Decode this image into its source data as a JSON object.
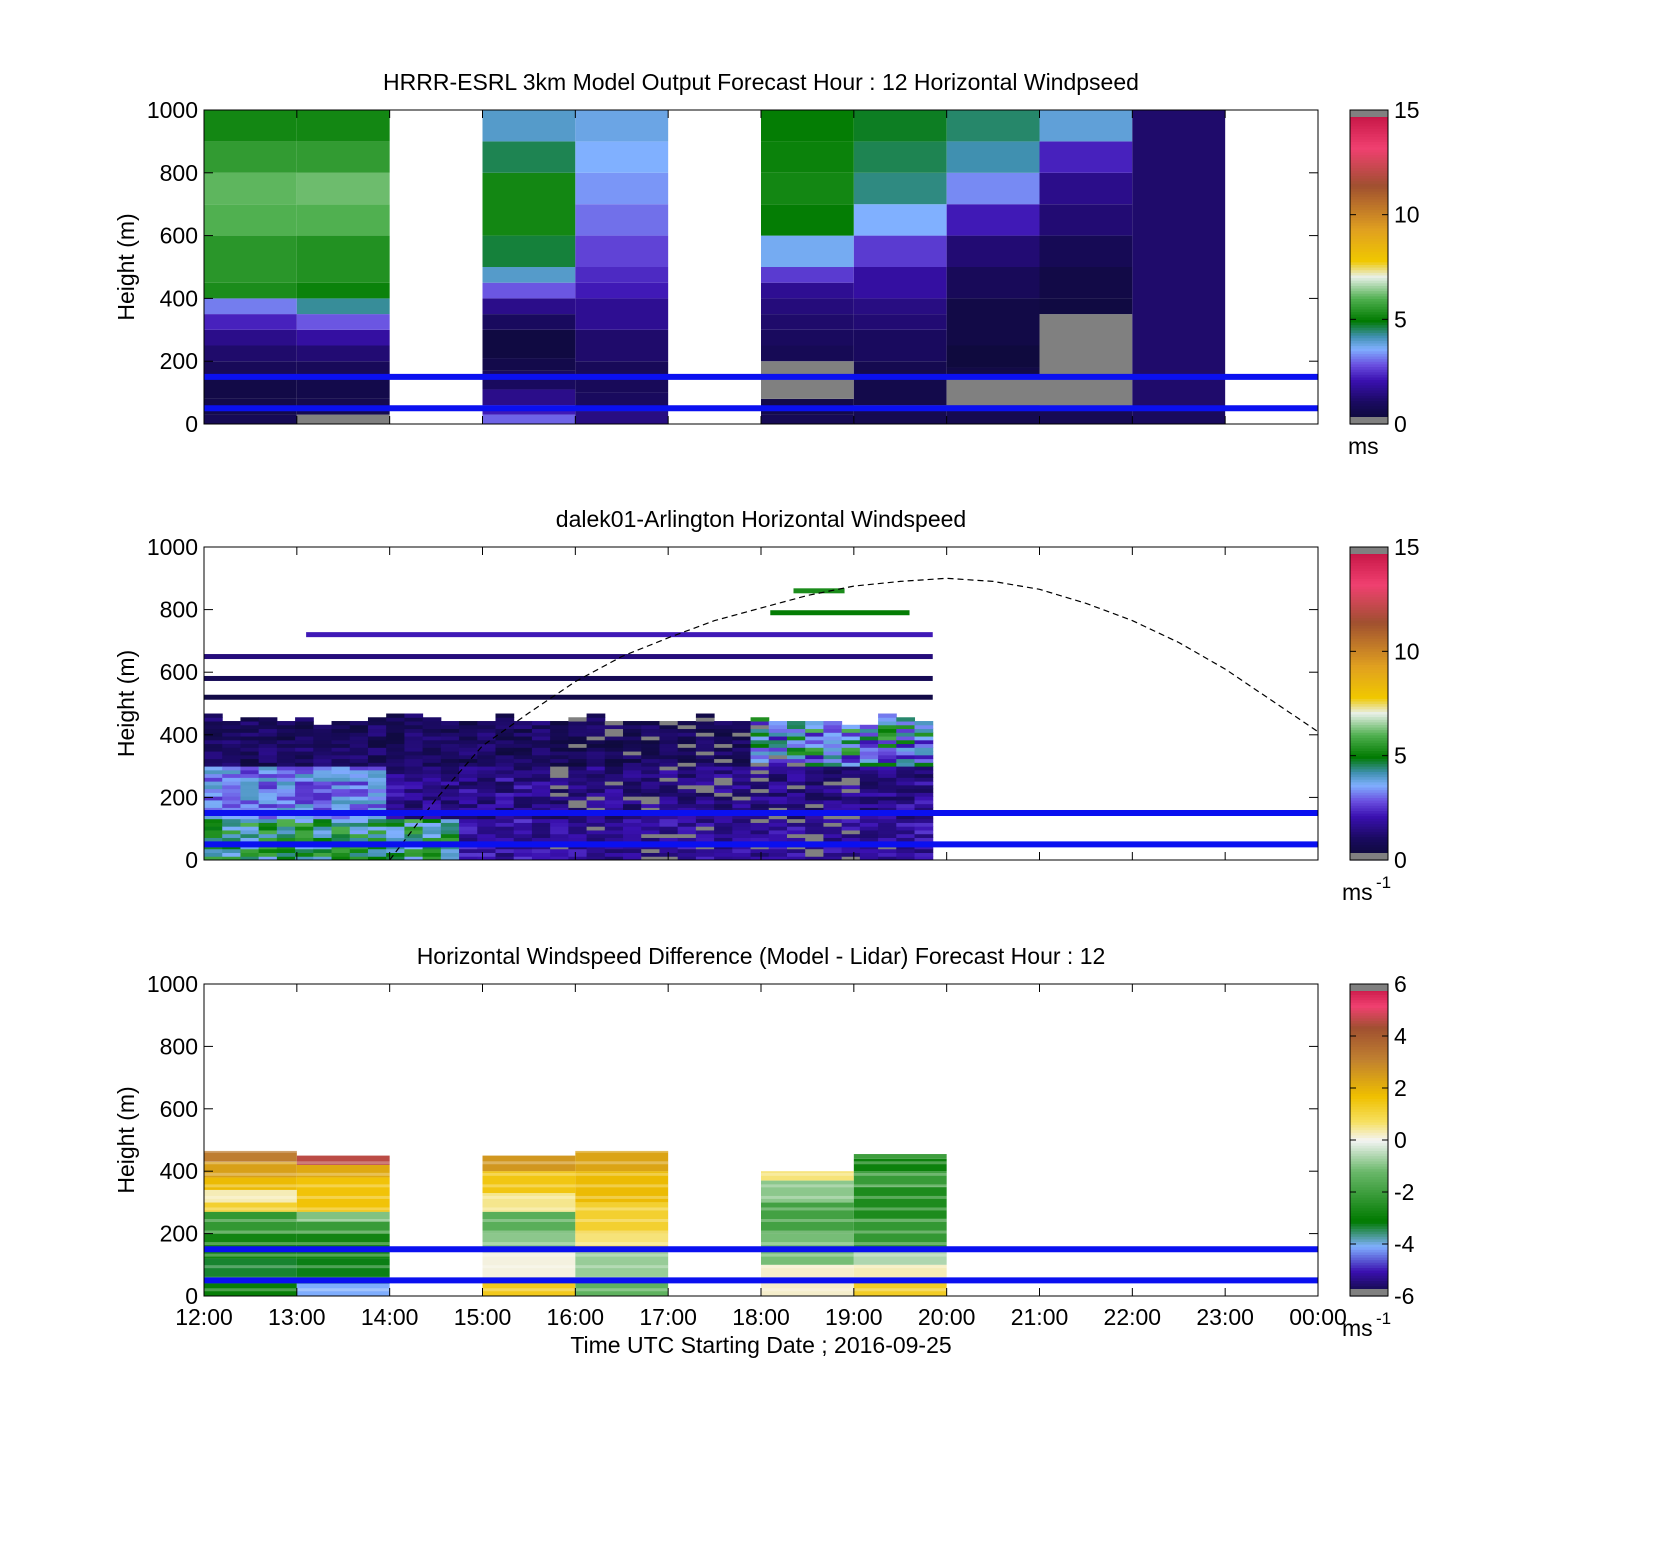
{
  "chart_data": [
    {
      "type": "heatmap",
      "title": "HRRR-ESRL 3km Model Output   Forecast Hour : 12 Horizontal Windpseed",
      "ylabel": "Height (m)",
      "xlabel": "",
      "ylim": [
        0,
        1000
      ],
      "yticks": [
        "0",
        "200",
        "400",
        "600",
        "800",
        "1000"
      ],
      "xlim_hours": [
        12,
        24
      ],
      "colorbar": {
        "min": 0,
        "max": 15,
        "ticks": [
          "0",
          "5",
          "10",
          "15"
        ],
        "unit": "ms",
        "unit_sup": "",
        "scale": "speed"
      },
      "reference_lines_m": [
        50,
        150
      ],
      "columns": [
        {
          "start_hour": 12,
          "end_hour": 13,
          "cells": [
            [
              0,
              30,
              0.8
            ],
            [
              30,
              80,
              0.6
            ],
            [
              80,
              150,
              0.5
            ],
            [
              150,
              200,
              0.9
            ],
            [
              200,
              250,
              1.2
            ],
            [
              250,
              300,
              1.6
            ],
            [
              300,
              350,
              2.3
            ],
            [
              350,
              400,
              3.2
            ],
            [
              400,
              450,
              5.3
            ],
            [
              450,
              600,
              5.5
            ],
            [
              600,
              700,
              6.0
            ],
            [
              700,
              800,
              6.1
            ],
            [
              800,
              900,
              5.6
            ],
            [
              900,
              1000,
              5.2
            ]
          ]
        },
        {
          "start_hour": 13,
          "end_hour": 14,
          "cells": [
            [
              0,
              30,
              16
            ],
            [
              30,
              80,
              0.7
            ],
            [
              80,
              150,
              0.6
            ],
            [
              150,
              200,
              0.9
            ],
            [
              200,
              250,
              1.3
            ],
            [
              250,
              300,
              1.9
            ],
            [
              300,
              350,
              2.9
            ],
            [
              350,
              400,
              4.3
            ],
            [
              400,
              450,
              5.1
            ],
            [
              450,
              600,
              5.4
            ],
            [
              600,
              700,
              6.0
            ],
            [
              700,
              800,
              6.2
            ],
            [
              800,
              900,
              5.6
            ],
            [
              900,
              1000,
              5.2
            ]
          ]
        },
        {
          "start_hour": 15,
          "end_hour": 16,
          "cells": [
            [
              0,
              30,
              3.0
            ],
            [
              30,
              60,
              2.2
            ],
            [
              60,
              110,
              1.6
            ],
            [
              110,
              170,
              1.0
            ],
            [
              170,
              210,
              0.6
            ],
            [
              210,
              300,
              0.4
            ],
            [
              300,
              350,
              1.0
            ],
            [
              350,
              400,
              1.6
            ],
            [
              400,
              450,
              2.9
            ],
            [
              450,
              500,
              4.0
            ],
            [
              500,
              600,
              4.7
            ],
            [
              600,
              800,
              5.2
            ],
            [
              800,
              900,
              4.6
            ],
            [
              900,
              1000,
              4.0
            ]
          ]
        },
        {
          "start_hour": 16,
          "end_hour": 17,
          "cells": [
            [
              0,
              40,
              1.5
            ],
            [
              40,
              100,
              1.0
            ],
            [
              100,
              200,
              0.9
            ],
            [
              200,
              300,
              1.2
            ],
            [
              300,
              400,
              1.7
            ],
            [
              400,
              450,
              2.2
            ],
            [
              450,
              500,
              2.4
            ],
            [
              500,
              600,
              2.7
            ],
            [
              600,
              700,
              3.1
            ],
            [
              700,
              800,
              3.4
            ],
            [
              800,
              900,
              3.6
            ],
            [
              900,
              1000,
              3.8
            ]
          ]
        },
        {
          "start_hour": 18,
          "end_hour": 19,
          "cells": [
            [
              0,
              30,
              0.8
            ],
            [
              30,
              80,
              0.6
            ],
            [
              80,
              200,
              16
            ],
            [
              200,
              250,
              0.8
            ],
            [
              250,
              300,
              1.0
            ],
            [
              300,
              350,
              1.2
            ],
            [
              350,
              400,
              1.4
            ],
            [
              400,
              450,
              1.7
            ],
            [
              450,
              500,
              2.6
            ],
            [
              500,
              600,
              3.7
            ],
            [
              600,
              700,
              5.0
            ],
            [
              700,
              800,
              5.2
            ],
            [
              800,
              900,
              5.1
            ],
            [
              900,
              1000,
              5.0
            ]
          ]
        },
        {
          "start_hour": 19,
          "end_hour": 20,
          "cells": [
            [
              0,
              60,
              0.7
            ],
            [
              60,
              150,
              0.6
            ],
            [
              150,
              200,
              0.7
            ],
            [
              200,
              300,
              1.0
            ],
            [
              300,
              350,
              1.3
            ],
            [
              350,
              400,
              1.5
            ],
            [
              400,
              500,
              1.9
            ],
            [
              500,
              600,
              2.6
            ],
            [
              600,
              700,
              3.6
            ],
            [
              700,
              800,
              4.4
            ],
            [
              800,
              900,
              4.6
            ],
            [
              900,
              1000,
              4.8
            ]
          ]
        },
        {
          "start_hour": 20,
          "end_hour": 21,
          "cells": [
            [
              0,
              60,
              0.7
            ],
            [
              60,
              150,
              16
            ],
            [
              150,
              180,
              0.5
            ],
            [
              180,
              250,
              0.3
            ],
            [
              250,
              400,
              0.5
            ],
            [
              400,
              500,
              0.9
            ],
            [
              500,
              600,
              1.3
            ],
            [
              600,
              700,
              2.2
            ],
            [
              700,
              800,
              3.3
            ],
            [
              800,
              900,
              4.2
            ],
            [
              900,
              1000,
              4.5
            ]
          ]
        },
        {
          "start_hour": 21,
          "end_hour": 22,
          "cells": [
            [
              0,
              50,
              0.8
            ],
            [
              50,
              350,
              16
            ],
            [
              350,
              400,
              0.4
            ],
            [
              400,
              500,
              0.5
            ],
            [
              500,
              600,
              0.8
            ],
            [
              600,
              700,
              1.3
            ],
            [
              700,
              800,
              1.6
            ],
            [
              800,
              900,
              2.3
            ],
            [
              900,
              1000,
              3.9
            ]
          ]
        },
        {
          "start_hour": 22,
          "end_hour": 23,
          "cells": [
            [
              0,
              50,
              1.0
            ],
            [
              50,
              1000,
              1.2
            ]
          ]
        }
      ]
    },
    {
      "type": "heatmap",
      "title": "dalek01-Arlington  Horizontal Windspeed",
      "ylabel": "Height (m)",
      "xlabel": "",
      "ylim": [
        0,
        1000
      ],
      "yticks": [
        "0",
        "200",
        "400",
        "600",
        "800",
        "1000"
      ],
      "xlim_hours": [
        12,
        24
      ],
      "colorbar": {
        "min": 0,
        "max": 15,
        "ticks": [
          "0",
          "5",
          "10",
          "15"
        ],
        "unit": "ms",
        "unit_sup": "-1",
        "scale": "speed"
      },
      "reference_lines_m": [
        50,
        150
      ],
      "data_extent": {
        "start_hour": 12,
        "end_hour": 19.85,
        "top_m": 460
      },
      "sparse_bands": [
        {
          "height_m": 520,
          "start_hour": 12,
          "end_hour": 19.85,
          "speed": 0.5
        },
        {
          "height_m": 580,
          "start_hour": 12,
          "end_hour": 19.85,
          "speed": 0.8
        },
        {
          "height_m": 650,
          "start_hour": 12,
          "end_hour": 19.85,
          "speed": 1.4
        },
        {
          "height_m": 720,
          "start_hour": 13.1,
          "end_hour": 19.85,
          "speed": 2.2
        },
        {
          "height_m": 790,
          "start_hour": 18.1,
          "end_hour": 19.6,
          "speed": 5.0
        },
        {
          "height_m": 860,
          "start_hour": 18.35,
          "end_hour": 18.9,
          "speed": 5.3
        }
      ],
      "boundary_layer_curve_m": [
        [
          14.0,
          0
        ],
        [
          14.5,
          195
        ],
        [
          15.0,
          365
        ],
        [
          15.5,
          470
        ],
        [
          16.0,
          570
        ],
        [
          16.5,
          650
        ],
        [
          17.0,
          710
        ],
        [
          17.5,
          765
        ],
        [
          18.0,
          805
        ],
        [
          18.5,
          845
        ],
        [
          19.0,
          875
        ],
        [
          19.5,
          890
        ],
        [
          20.0,
          900
        ],
        [
          20.5,
          890
        ],
        [
          21.0,
          865
        ],
        [
          21.5,
          820
        ],
        [
          22.0,
          765
        ],
        [
          22.5,
          695
        ],
        [
          23.0,
          610
        ],
        [
          23.5,
          510
        ],
        [
          24.0,
          410
        ]
      ]
    },
    {
      "type": "heatmap",
      "title": "Horizontal Windspeed Difference (Model - Lidar) Forecast Hour : 12",
      "ylabel": "Height (m)",
      "xlabel": "Time UTC  Starting Date ; 2016-09-25",
      "ylim": [
        0,
        1000
      ],
      "yticks": [
        "0",
        "200",
        "400",
        "600",
        "800",
        "1000"
      ],
      "xticks": [
        "12:00",
        "13:00",
        "14:00",
        "15:00",
        "16:00",
        "17:00",
        "18:00",
        "19:00",
        "20:00",
        "21:00",
        "22:00",
        "23:00",
        "00:00"
      ],
      "xlim_hours": [
        12,
        24
      ],
      "colorbar": {
        "min": -6,
        "max": 6,
        "ticks": [
          "-6",
          "-4",
          "-2",
          "0",
          "2",
          "4",
          "6"
        ],
        "unit": "ms",
        "unit_sup": "-1",
        "scale": "diff"
      },
      "reference_lines_m": [
        50,
        150
      ],
      "columns": [
        {
          "start_hour": 12,
          "end_hour": 13,
          "cells": [
            [
              0,
              40,
              -3.0
            ],
            [
              40,
              120,
              -3.3
            ],
            [
              120,
              200,
              -2.8
            ],
            [
              200,
              270,
              -2.2
            ],
            [
              270,
              300,
              1.2
            ],
            [
              300,
              340,
              0.3
            ],
            [
              340,
              380,
              1.8
            ],
            [
              380,
              430,
              2.4
            ],
            [
              430,
              465,
              3.2
            ]
          ]
        },
        {
          "start_hour": 13,
          "end_hour": 14,
          "cells": [
            [
              0,
              40,
              -4.1
            ],
            [
              40,
              120,
              -3.2
            ],
            [
              120,
              200,
              -2.8
            ],
            [
              200,
              240,
              -2.1
            ],
            [
              240,
              270,
              -1.0
            ],
            [
              270,
              380,
              1.6
            ],
            [
              380,
              420,
              2.2
            ],
            [
              420,
              450,
              4.6
            ]
          ]
        },
        {
          "start_hour": 15,
          "end_hour": 16,
          "cells": [
            [
              0,
              60,
              1.4
            ],
            [
              60,
              140,
              0.1
            ],
            [
              140,
              200,
              -0.9
            ],
            [
              200,
              270,
              -1.5
            ],
            [
              270,
              330,
              0.5
            ],
            [
              330,
              400,
              1.5
            ],
            [
              400,
              450,
              2.6
            ]
          ]
        },
        {
          "start_hour": 16,
          "end_hour": 17,
          "cells": [
            [
              0,
              60,
              -1.4
            ],
            [
              60,
              140,
              -0.8
            ],
            [
              140,
              200,
              0.6
            ],
            [
              200,
              300,
              1.2
            ],
            [
              300,
              400,
              1.8
            ],
            [
              400,
              465,
              2.3
            ]
          ]
        },
        {
          "start_hour": 18,
          "end_hour": 19,
          "cells": [
            [
              0,
              100,
              0.2
            ],
            [
              100,
              200,
              -1.1
            ],
            [
              200,
              300,
              -1.9
            ],
            [
              300,
              370,
              -0.9
            ],
            [
              370,
              400,
              0.6
            ]
          ]
        },
        {
          "start_hour": 19,
          "end_hour": 20,
          "cells": [
            [
              0,
              50,
              1.3
            ],
            [
              50,
              100,
              0.3
            ],
            [
              100,
              150,
              -0.6
            ],
            [
              150,
              250,
              -2.2
            ],
            [
              250,
              350,
              -2.6
            ],
            [
              350,
              400,
              -2.1
            ],
            [
              400,
              440,
              -2.9
            ],
            [
              440,
              455,
              -2.0
            ]
          ]
        }
      ]
    }
  ]
}
